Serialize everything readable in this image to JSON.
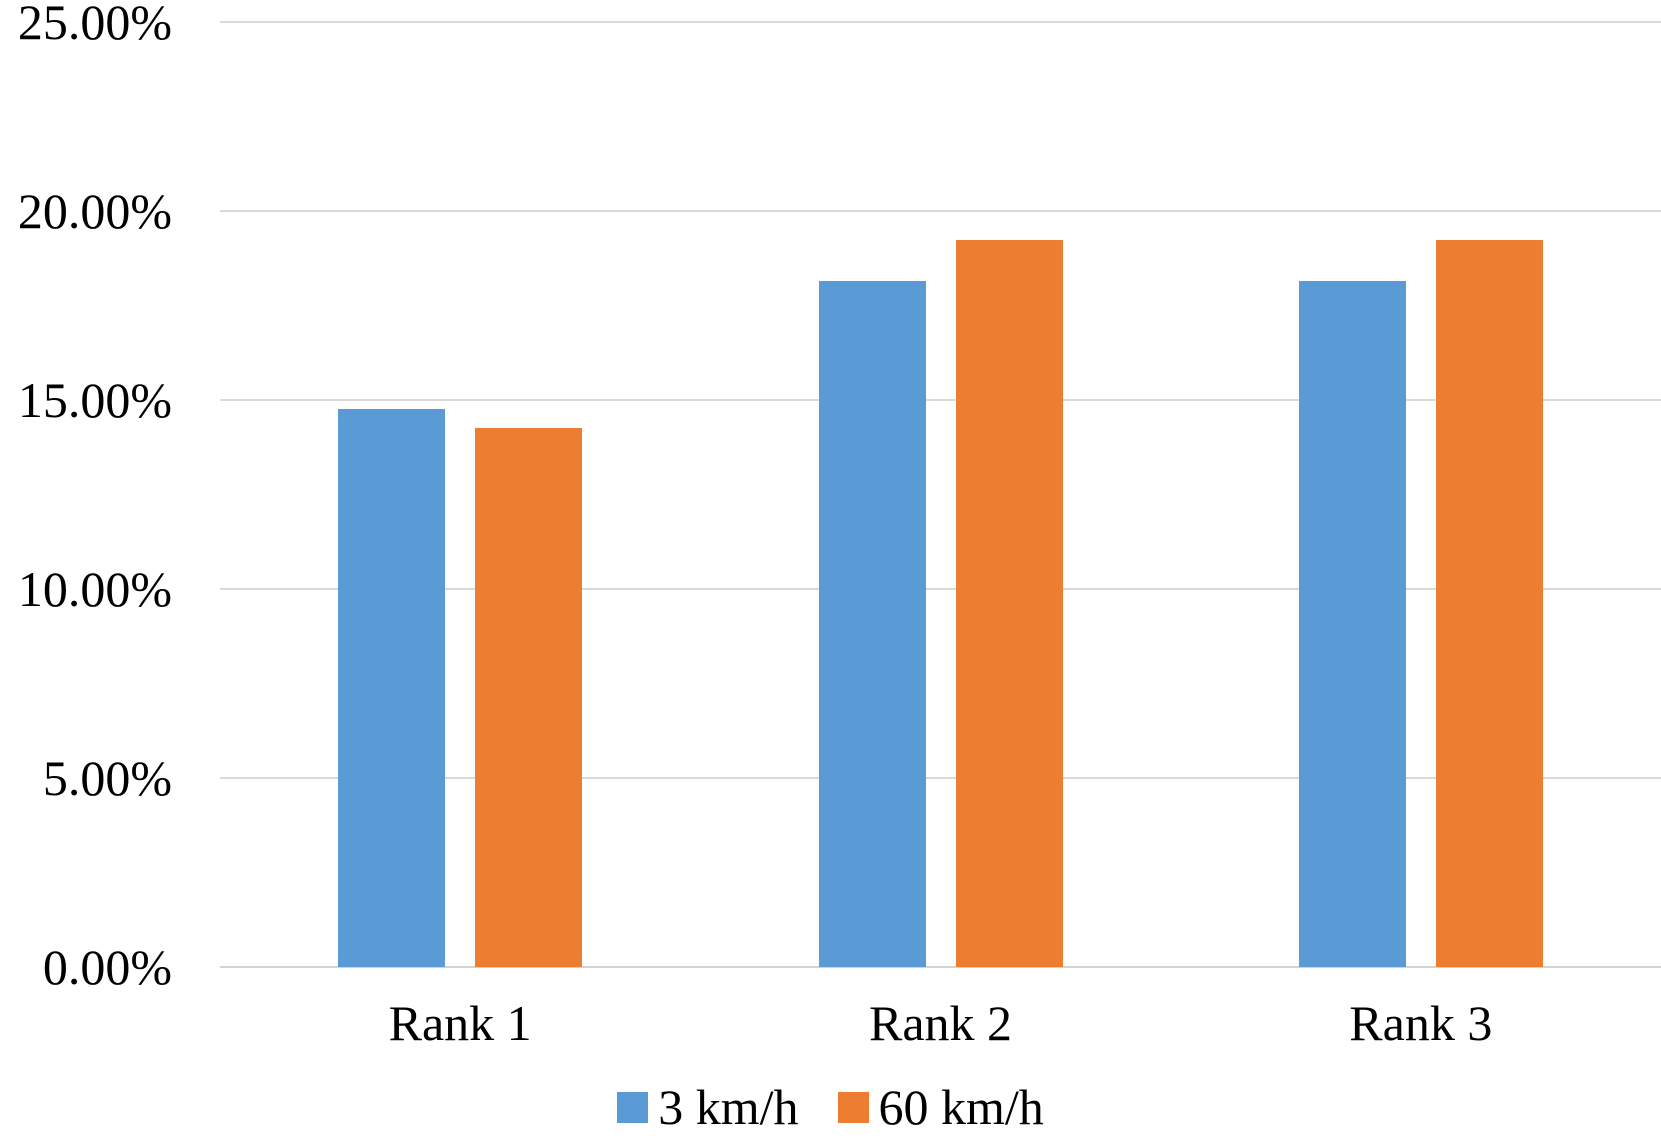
{
  "chart_data": {
    "type": "bar",
    "title": "",
    "xlabel": "",
    "ylabel": "",
    "categories": [
      "Rank 1",
      "Rank 2",
      "Rank 3"
    ],
    "series": [
      {
        "name": "3 km/h",
        "color": "#5B9BD5",
        "values": [
          14.76,
          18.15,
          18.15
        ]
      },
      {
        "name": "60 km/h",
        "color": "#ED7D31",
        "values": [
          14.26,
          19.23,
          19.23
        ]
      }
    ],
    "ylim": [
      0,
      25
    ],
    "ytick_step": 5,
    "ytick_labels": [
      "0.00%",
      "5.00%",
      "10.00%",
      "15.00%",
      "20.00%",
      "25.00%"
    ],
    "grid": true,
    "legend_position": "bottom",
    "colors": {
      "gridline": "#D9D9D9",
      "axis_line": "#D2D2D2",
      "text": "#000000",
      "background": "#FFFFFF"
    }
  }
}
